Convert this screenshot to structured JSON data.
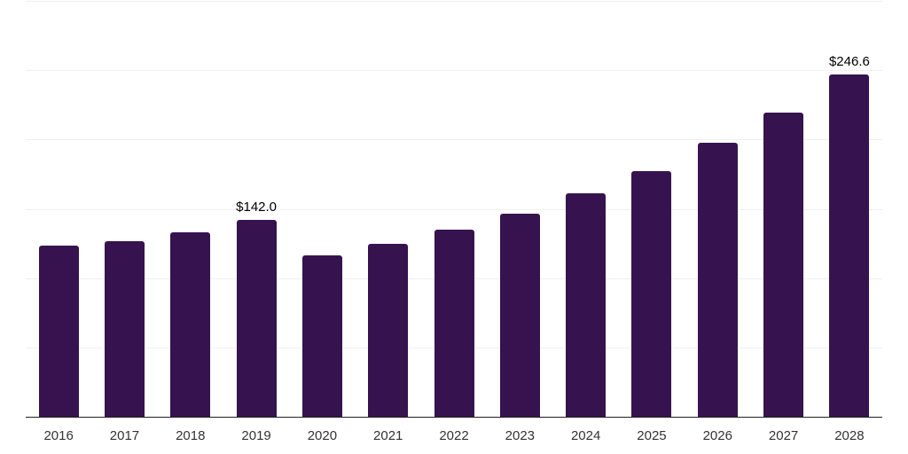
{
  "chart_data": {
    "type": "bar",
    "title": "",
    "xlabel": "",
    "ylabel": "",
    "categories": [
      "2016",
      "2017",
      "2018",
      "2019",
      "2020",
      "2021",
      "2022",
      "2023",
      "2024",
      "2025",
      "2026",
      "2027",
      "2028"
    ],
    "values": [
      123.2,
      126.8,
      133.2,
      142.0,
      116.2,
      124.7,
      135.0,
      146.7,
      161.4,
      177.4,
      197.4,
      219.7,
      246.6
    ],
    "data_labels": [
      {
        "category": "2019",
        "text": "$142.0"
      },
      {
        "category": "2028",
        "text": "$246.6"
      }
    ],
    "ylim": [
      0,
      300
    ],
    "gridline_values": [
      50,
      100,
      150,
      200,
      250,
      300
    ],
    "grid": true,
    "legend": false,
    "legend_position": "none"
  },
  "style": {
    "bar_color": "#36134f",
    "axis_color": "#212121",
    "gridline_color": "#f0f0f0",
    "tick_label_color": "#333333",
    "data_label_color": "#000000",
    "background_color": "#ffffff"
  }
}
